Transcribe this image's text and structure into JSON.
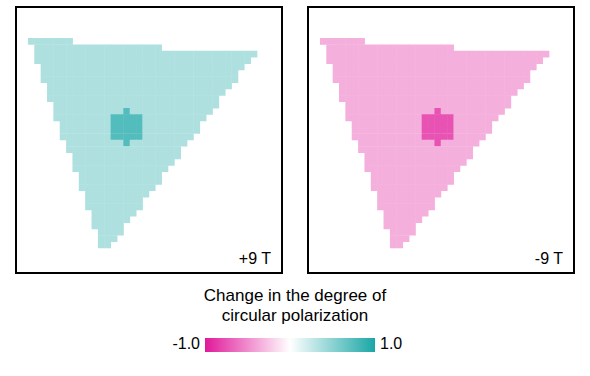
{
  "chart_data": {
    "type": "heatmap",
    "map_size": [
      40,
      40
    ],
    "xlim": [
      0,
      40
    ],
    "ylim": [
      0,
      40
    ],
    "tick_labels": false,
    "panels": [
      {
        "label": "+9 T",
        "region": {
          "shape": "triangle",
          "vertices": [
            [
              1,
              4
            ],
            [
              36.5,
              6.5
            ],
            [
              13,
              38
            ]
          ],
          "value": 0.35
        },
        "spot": {
          "center": [
            16.5,
            18
          ],
          "radius": 2.6,
          "value": 0.75
        }
      },
      {
        "label": "-9 T",
        "region": {
          "shape": "triangle",
          "vertices": [
            [
              1,
              4
            ],
            [
              36.5,
              6.5
            ],
            [
              13,
              38
            ]
          ],
          "value": -0.35
        },
        "spot": {
          "center": [
            19.5,
            18
          ],
          "radius": 2.6,
          "value": -0.75
        }
      }
    ],
    "colorbar": {
      "title": "Change in the degree of circular polarization",
      "range": [
        -1,
        1
      ],
      "ticks": [
        {
          "value": -1,
          "label": "-1.0"
        },
        {
          "value": 1,
          "label": "1.0"
        }
      ],
      "colors": [
        "#e0199a",
        "#ffffff",
        "#19a6a6"
      ]
    }
  }
}
